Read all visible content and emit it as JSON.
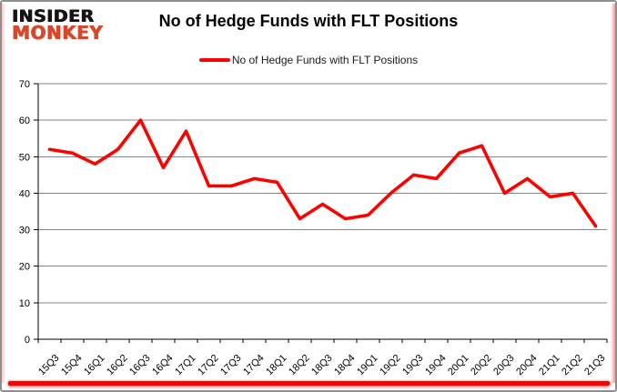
{
  "logo": {
    "line1": "INSIDER",
    "line2": "MONKEY"
  },
  "header": {
    "title": "No of Hedge Funds with FLT Positions"
  },
  "legend": {
    "label": "No of Hedge Funds with FLT Positions",
    "swatch_color": "#ff0000"
  },
  "colors": {
    "series_red": "#ff0000",
    "logo_red": "#d9472b",
    "grid_gray": "#878787",
    "axis_black": "#000000",
    "border_gray": "#8f8f8f"
  },
  "chart_data": {
    "type": "line",
    "title": "No of Hedge Funds with FLT Positions",
    "xlabel": "",
    "ylabel": "",
    "categories": [
      "15Q3",
      "15Q4",
      "16Q1",
      "16Q2",
      "16Q3",
      "16Q4",
      "17Q1",
      "17Q2",
      "17Q3",
      "17Q4",
      "18Q1",
      "18Q2",
      "18Q3",
      "18Q4",
      "19Q1",
      "19Q2",
      "19Q3",
      "19Q4",
      "20Q1",
      "20Q2",
      "20Q3",
      "20Q4",
      "21Q1",
      "21Q2",
      "21Q3"
    ],
    "series": [
      {
        "name": "No of Hedge Funds with FLT Positions",
        "color": "#ff0000",
        "values": [
          52,
          51,
          48,
          52,
          60,
          47,
          57,
          42,
          42,
          44,
          43,
          33,
          37,
          33,
          34,
          40,
          45,
          44,
          51,
          53,
          40,
          44,
          39,
          40,
          31
        ]
      }
    ],
    "ylim": [
      0,
      70
    ],
    "yticks": [
      0,
      10,
      20,
      30,
      40,
      50,
      60,
      70
    ],
    "grid": true,
    "legend_position": "top"
  }
}
